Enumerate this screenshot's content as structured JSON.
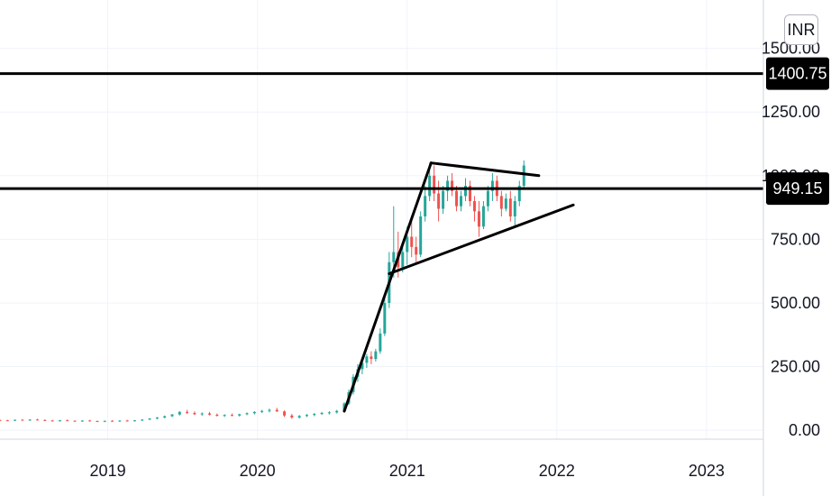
{
  "currency": "INR",
  "chart_data": {
    "type": "candlestick",
    "y_axis": {
      "ticks": [
        0,
        250,
        500,
        750,
        1000,
        1250,
        1500
      ],
      "tick_labels": [
        "0.00",
        "250.00",
        "500.00",
        "750.00",
        "1000.00",
        "1250.00",
        "1500.00"
      ],
      "ylim": [
        -35,
        1690
      ]
    },
    "x_axis": {
      "ticks": [
        2019,
        2020,
        2021,
        2022,
        2023
      ],
      "tick_labels": [
        "2019",
        "2020",
        "2021",
        "2022",
        "2023"
      ],
      "xlim": [
        2018.28,
        2023.38
      ]
    },
    "colors": {
      "up": "#26a69a",
      "down": "#ef5350",
      "line": "#000000",
      "tag_bg": "#000000",
      "grid": "#f0f3fa"
    },
    "horizontal_levels": [
      {
        "value": 1400.75,
        "label": "1400.75"
      },
      {
        "value": 949.15,
        "label": "949.15"
      }
    ],
    "trend_lines": [
      {
        "x1": 2020.58,
        "y1": 75,
        "x2": 2021.16,
        "y2": 1050
      },
      {
        "x1": 2021.16,
        "y1": 1050,
        "x2": 2021.88,
        "y2": 1000
      },
      {
        "x1": 2020.88,
        "y1": 615,
        "x2": 2022.11,
        "y2": 885
      }
    ],
    "candles_approx": [
      [
        2018.28,
        40,
        42,
        37,
        39
      ],
      [
        2018.33,
        39,
        41,
        36,
        38
      ],
      [
        2018.38,
        38,
        42,
        36,
        41
      ],
      [
        2018.43,
        41,
        44,
        38,
        39
      ],
      [
        2018.48,
        39,
        43,
        37,
        42
      ],
      [
        2018.53,
        42,
        45,
        39,
        40
      ],
      [
        2018.58,
        40,
        43,
        37,
        38
      ],
      [
        2018.63,
        38,
        41,
        35,
        37
      ],
      [
        2018.68,
        37,
        40,
        34,
        39
      ],
      [
        2018.73,
        39,
        42,
        36,
        37
      ],
      [
        2018.78,
        37,
        39,
        34,
        36
      ],
      [
        2018.83,
        36,
        39,
        33,
        38
      ],
      [
        2018.88,
        38,
        41,
        35,
        36
      ],
      [
        2018.93,
        36,
        38,
        33,
        35
      ],
      [
        2018.98,
        35,
        38,
        32,
        37
      ],
      [
        2019.03,
        37,
        40,
        34,
        36
      ],
      [
        2019.08,
        36,
        39,
        33,
        38
      ],
      [
        2019.13,
        38,
        41,
        35,
        37
      ],
      [
        2019.18,
        37,
        40,
        34,
        39
      ],
      [
        2019.23,
        39,
        43,
        36,
        42
      ],
      [
        2019.28,
        42,
        48,
        40,
        46
      ],
      [
        2019.33,
        46,
        52,
        43,
        50
      ],
      [
        2019.38,
        50,
        58,
        47,
        55
      ],
      [
        2019.43,
        55,
        64,
        52,
        62
      ],
      [
        2019.48,
        62,
        75,
        58,
        72
      ],
      [
        2019.53,
        72,
        80,
        64,
        68
      ],
      [
        2019.58,
        68,
        74,
        60,
        63
      ],
      [
        2019.63,
        63,
        70,
        57,
        66
      ],
      [
        2019.68,
        66,
        72,
        58,
        61
      ],
      [
        2019.73,
        61,
        66,
        54,
        57
      ],
      [
        2019.78,
        57,
        63,
        52,
        60
      ],
      [
        2019.83,
        60,
        66,
        55,
        58
      ],
      [
        2019.88,
        58,
        65,
        54,
        63
      ],
      [
        2019.93,
        63,
        70,
        59,
        67
      ],
      [
        2019.98,
        67,
        75,
        62,
        72
      ],
      [
        2020.03,
        72,
        80,
        68,
        76
      ],
      [
        2020.08,
        76,
        85,
        70,
        80
      ],
      [
        2020.13,
        80,
        88,
        72,
        74
      ],
      [
        2020.18,
        74,
        78,
        52,
        58
      ],
      [
        2020.23,
        58,
        64,
        45,
        50
      ],
      [
        2020.28,
        50,
        60,
        46,
        56
      ],
      [
        2020.33,
        56,
        64,
        52,
        60
      ],
      [
        2020.38,
        60,
        68,
        55,
        64
      ],
      [
        2020.43,
        64,
        72,
        60,
        68
      ],
      [
        2020.48,
        68,
        75,
        62,
        70
      ],
      [
        2020.53,
        70,
        80,
        66,
        76
      ],
      [
        2020.58,
        76,
        110,
        72,
        105
      ],
      [
        2020.61,
        105,
        160,
        100,
        150
      ],
      [
        2020.64,
        150,
        220,
        140,
        210
      ],
      [
        2020.67,
        210,
        260,
        190,
        240
      ],
      [
        2020.7,
        240,
        280,
        220,
        265
      ],
      [
        2020.73,
        265,
        300,
        245,
        290
      ],
      [
        2020.76,
        290,
        310,
        260,
        280
      ],
      [
        2020.79,
        280,
        320,
        270,
        310
      ],
      [
        2020.82,
        310,
        400,
        300,
        380
      ],
      [
        2020.85,
        380,
        520,
        370,
        500
      ],
      [
        2020.88,
        500,
        700,
        480,
        660
      ],
      [
        2020.91,
        660,
        880,
        600,
        700
      ],
      [
        2020.94,
        700,
        780,
        600,
        640
      ],
      [
        2020.97,
        640,
        720,
        620,
        700
      ],
      [
        2021.0,
        700,
        800,
        650,
        760
      ],
      [
        2021.03,
        760,
        820,
        680,
        720
      ],
      [
        2021.06,
        720,
        760,
        660,
        690
      ],
      [
        2021.09,
        690,
        860,
        680,
        840
      ],
      [
        2021.12,
        840,
        960,
        820,
        920
      ],
      [
        2021.15,
        920,
        1050,
        900,
        1000
      ],
      [
        2021.18,
        1000,
        1040,
        900,
        930
      ],
      [
        2021.21,
        930,
        980,
        820,
        870
      ],
      [
        2021.24,
        870,
        960,
        850,
        940
      ],
      [
        2021.27,
        940,
        1000,
        900,
        980
      ],
      [
        2021.3,
        980,
        1010,
        920,
        940
      ],
      [
        2021.33,
        940,
        960,
        860,
        880
      ],
      [
        2021.36,
        880,
        940,
        860,
        920
      ],
      [
        2021.39,
        920,
        990,
        900,
        960
      ],
      [
        2021.42,
        960,
        980,
        880,
        900
      ],
      [
        2021.45,
        900,
        920,
        820,
        860
      ],
      [
        2021.48,
        860,
        900,
        760,
        800
      ],
      [
        2021.51,
        800,
        900,
        790,
        880
      ],
      [
        2021.54,
        880,
        960,
        860,
        940
      ],
      [
        2021.57,
        940,
        1010,
        900,
        980
      ],
      [
        2021.6,
        980,
        1000,
        900,
        920
      ],
      [
        2021.63,
        920,
        940,
        840,
        870
      ],
      [
        2021.66,
        870,
        930,
        860,
        910
      ],
      [
        2021.69,
        910,
        940,
        820,
        840
      ],
      [
        2021.72,
        840,
        920,
        800,
        900
      ],
      [
        2021.75,
        900,
        980,
        880,
        960
      ],
      [
        2021.78,
        960,
        1060,
        950,
        1040
      ]
    ]
  }
}
